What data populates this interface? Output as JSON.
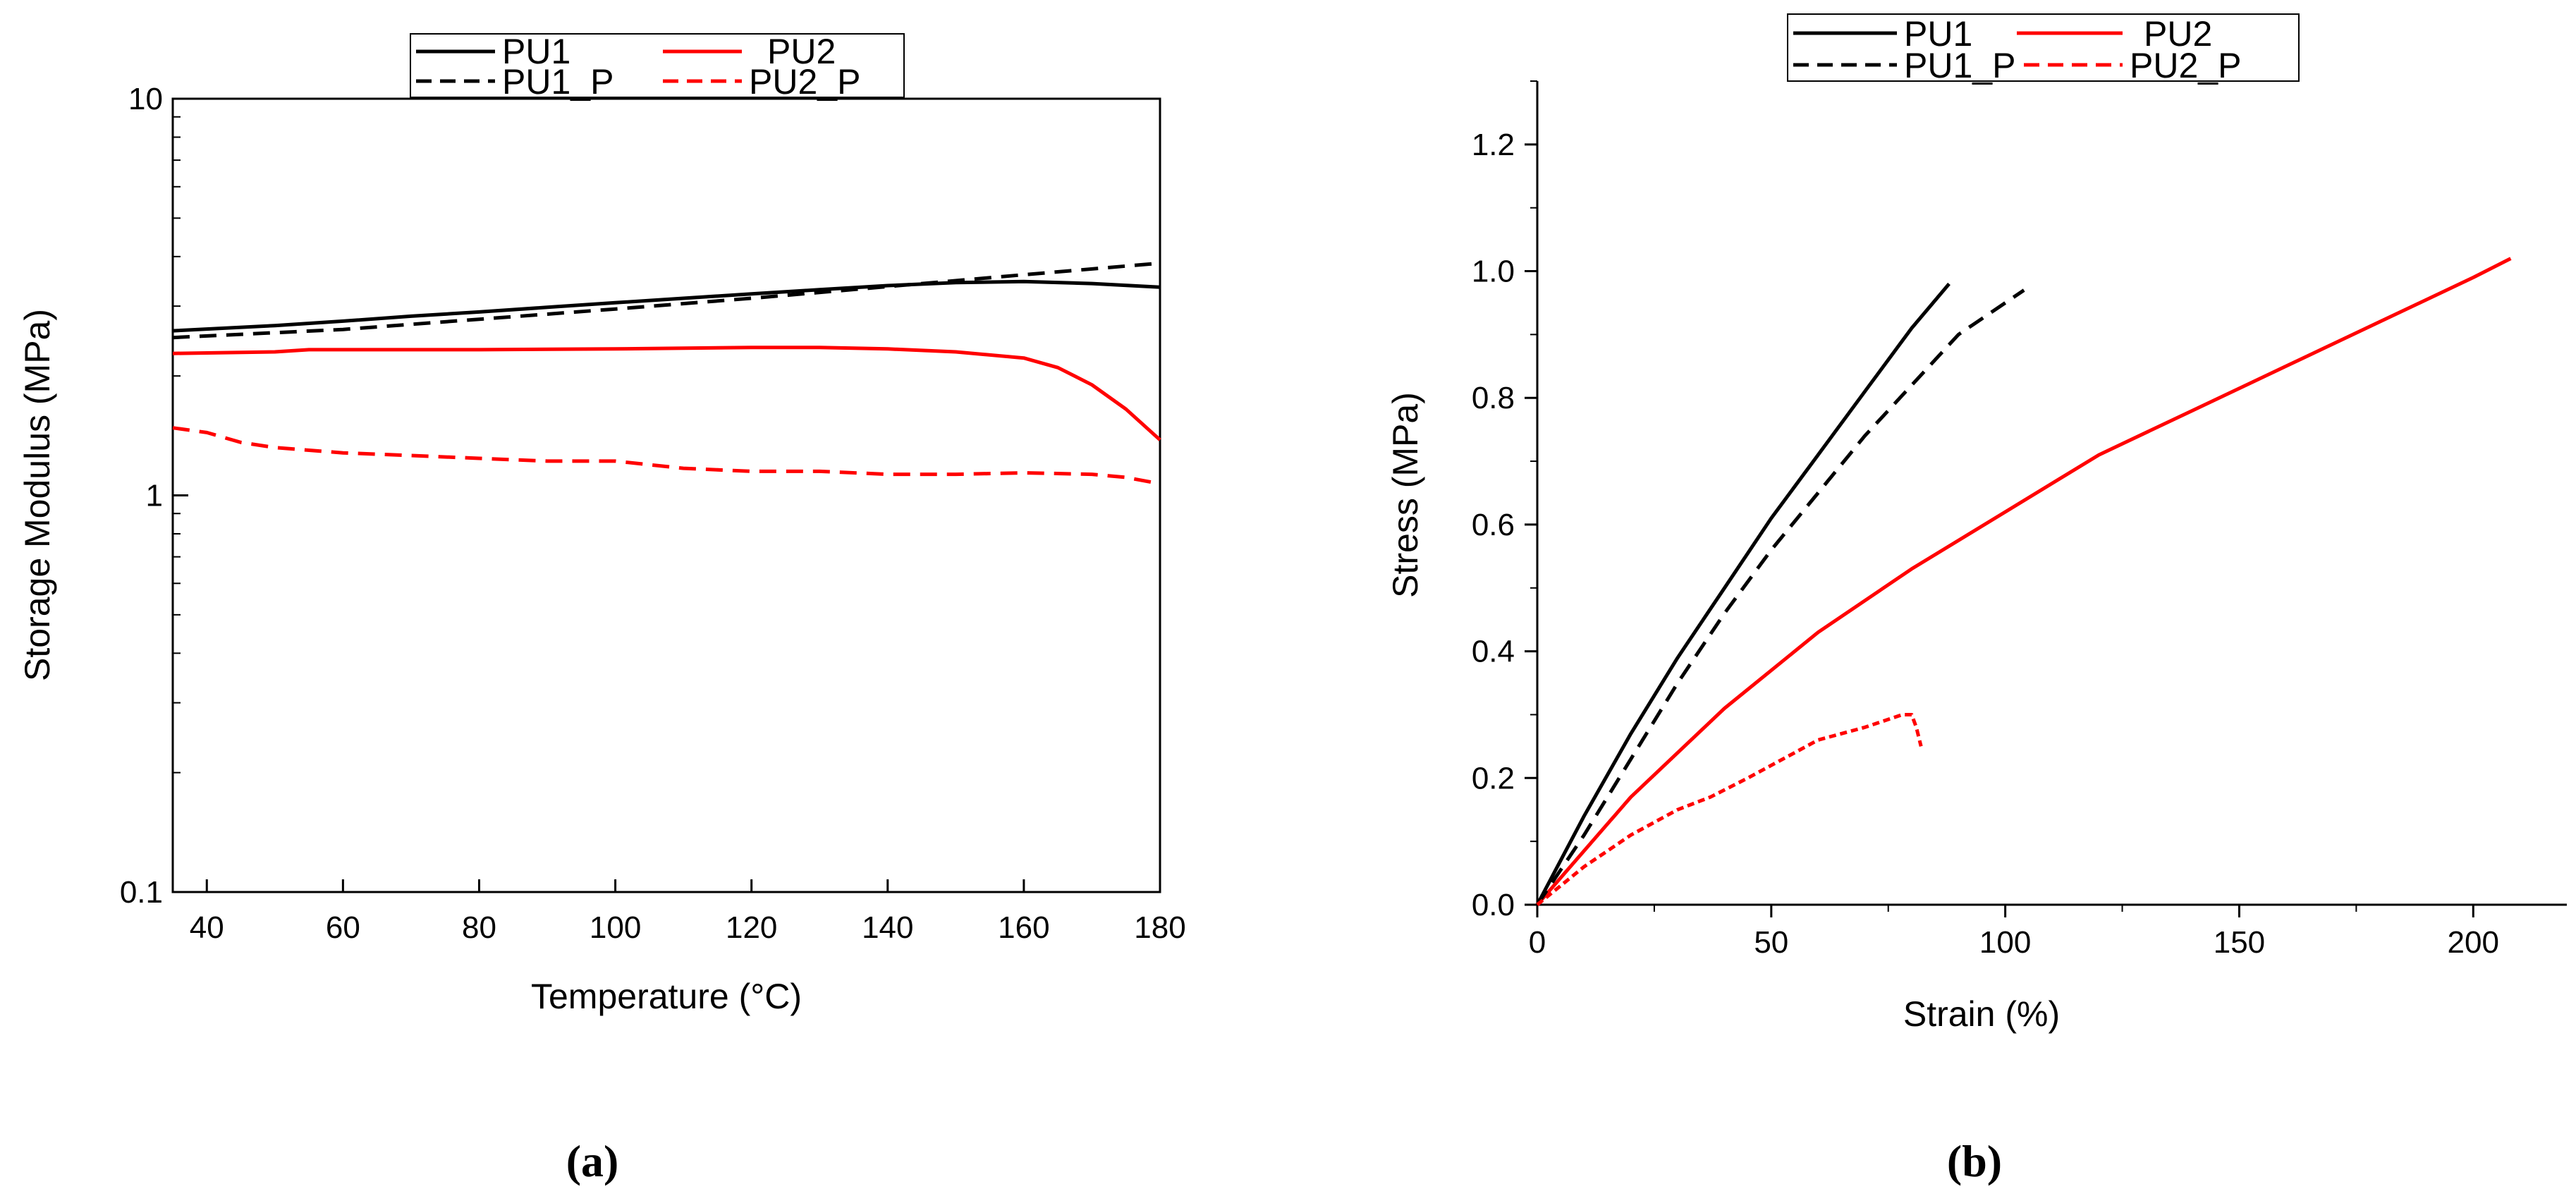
{
  "chart_data": [
    {
      "type": "line",
      "panel_label": "(a)",
      "xlabel": "Temperature (°C)",
      "ylabel": "Storage Modulus (MPa)",
      "xlim": [
        35,
        180
      ],
      "ylim": [
        0.1,
        10
      ],
      "yscale": "log",
      "x_ticks": [
        40,
        60,
        80,
        100,
        120,
        140,
        160,
        180
      ],
      "y_ticks": [
        0.1,
        1,
        10
      ],
      "y_tick_labels": [
        "0.1",
        "1",
        "10"
      ],
      "legend": {
        "location": "top-center",
        "entries": [
          "PU1",
          "PU2",
          "PU1_P",
          "PU2_P"
        ]
      },
      "series": [
        {
          "name": "PU1",
          "color": "#000000",
          "style": "solid",
          "x": [
            35,
            50,
            60,
            70,
            80,
            90,
            100,
            110,
            120,
            130,
            140,
            150,
            160,
            170,
            180
          ],
          "y": [
            2.6,
            2.68,
            2.75,
            2.83,
            2.9,
            2.98,
            3.06,
            3.14,
            3.22,
            3.3,
            3.38,
            3.44,
            3.46,
            3.42,
            3.35
          ]
        },
        {
          "name": "PU2",
          "color": "#ff0000",
          "style": "solid",
          "x": [
            35,
            50,
            55,
            60,
            80,
            100,
            120,
            130,
            140,
            150,
            160,
            165,
            170,
            175,
            180
          ],
          "y": [
            2.28,
            2.3,
            2.33,
            2.33,
            2.33,
            2.34,
            2.36,
            2.36,
            2.34,
            2.3,
            2.22,
            2.1,
            1.9,
            1.65,
            1.38
          ]
        },
        {
          "name": "PU1_P",
          "color": "#000000",
          "style": "dashed",
          "x": [
            35,
            60,
            80,
            100,
            120,
            140,
            160,
            180
          ],
          "y": [
            2.5,
            2.62,
            2.78,
            2.95,
            3.14,
            3.36,
            3.6,
            3.85
          ]
        },
        {
          "name": "PU2_P",
          "color": "#ff0000",
          "style": "dashed",
          "x": [
            35,
            40,
            45,
            50,
            60,
            70,
            80,
            90,
            100,
            110,
            120,
            130,
            140,
            150,
            160,
            170,
            175,
            180
          ],
          "y": [
            1.48,
            1.44,
            1.36,
            1.32,
            1.28,
            1.26,
            1.24,
            1.22,
            1.22,
            1.17,
            1.15,
            1.15,
            1.13,
            1.13,
            1.14,
            1.13,
            1.11,
            1.07
          ]
        }
      ]
    },
    {
      "type": "line",
      "panel_label": "(b)",
      "xlabel": "Strain (%)",
      "ylabel": "Stress (MPa)",
      "xlim": [
        0,
        220
      ],
      "ylim": [
        0,
        1.3
      ],
      "x_ticks": [
        0,
        50,
        100,
        150,
        200
      ],
      "y_ticks": [
        0.0,
        0.2,
        0.4,
        0.6,
        0.8,
        1.0,
        1.2
      ],
      "y_tick_labels": [
        "0.0",
        "0.2",
        "0.4",
        "0.6",
        "0.8",
        "1.0",
        "1.2"
      ],
      "legend": {
        "location": "top-left",
        "entries": [
          "PU1",
          "PU2",
          "PU1_P",
          "PU2_P"
        ]
      },
      "series": [
        {
          "name": "PU1",
          "color": "#000000",
          "style": "solid",
          "x": [
            0,
            10,
            20,
            30,
            40,
            50,
            60,
            70,
            80,
            88
          ],
          "y": [
            0,
            0.14,
            0.27,
            0.39,
            0.5,
            0.61,
            0.71,
            0.81,
            0.91,
            0.98
          ]
        },
        {
          "name": "PU2",
          "color": "#ff0000",
          "style": "solid",
          "x": [
            0,
            20,
            40,
            60,
            80,
            100,
            120,
            140,
            160,
            180,
            200,
            208
          ],
          "y": [
            0,
            0.17,
            0.31,
            0.43,
            0.53,
            0.62,
            0.71,
            0.78,
            0.85,
            0.92,
            0.99,
            1.02
          ]
        },
        {
          "name": "PU1_P",
          "color": "#000000",
          "style": "dashed",
          "x": [
            0,
            10,
            20,
            30,
            40,
            50,
            60,
            70,
            80,
            90,
            100,
            104
          ],
          "y": [
            0,
            0.11,
            0.23,
            0.35,
            0.46,
            0.56,
            0.65,
            0.74,
            0.82,
            0.9,
            0.95,
            0.97
          ]
        },
        {
          "name": "PU2_P",
          "color": "#ff0000",
          "style": "dashed",
          "x": [
            0,
            10,
            20,
            30,
            37,
            45,
            55,
            60,
            70,
            78,
            80,
            81,
            82
          ],
          "y": [
            0,
            0.06,
            0.11,
            0.15,
            0.17,
            0.2,
            0.24,
            0.26,
            0.28,
            0.3,
            0.3,
            0.28,
            0.25
          ]
        }
      ]
    }
  ]
}
